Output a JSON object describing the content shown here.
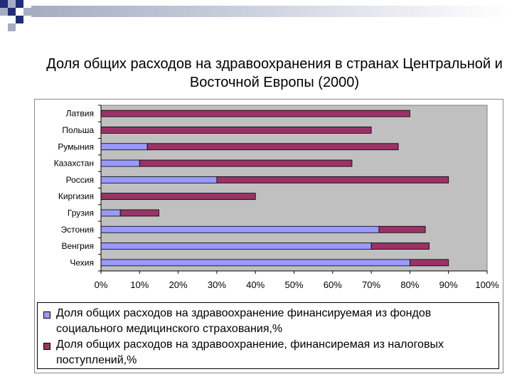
{
  "colors": {
    "plot_bg": "#c0c0c0",
    "series_1": "#9999ff",
    "series_2": "#993366",
    "deco_dark": "#1f2d7a",
    "deco_light": "#a6adc2"
  },
  "chart_data": {
    "type": "bar",
    "orientation": "horizontal",
    "stacked": true,
    "title": "Доля общих расходов на здравоохранения в странах Центральной и Восточной Европы (2000)",
    "categories": [
      "Латвия",
      "Польша",
      "Румыния",
      "Казахстан",
      "Россия",
      "Киргизия",
      "Грузия",
      "Эстония",
      "Венгрия",
      "Чехия"
    ],
    "series": [
      {
        "name": "Доля общих расходов на здравоохранение финансируемая из фондов социального медицинского страхования,%",
        "values": [
          0,
          0,
          12,
          10,
          30,
          0,
          5,
          72,
          70,
          80
        ]
      },
      {
        "name": "Доля общих расходов на здравоохранение, финансиремая из налоговых поступлений,%",
        "values": [
          80,
          70,
          65,
          55,
          60,
          40,
          10,
          12,
          15,
          10
        ]
      }
    ],
    "xlim": [
      0,
      100
    ],
    "x_ticks": [
      "0%",
      "10%",
      "20%",
      "30%",
      "40%",
      "50%",
      "60%",
      "70%",
      "80%",
      "90%",
      "100%"
    ],
    "grid": false,
    "legend_placement": "bottom"
  }
}
